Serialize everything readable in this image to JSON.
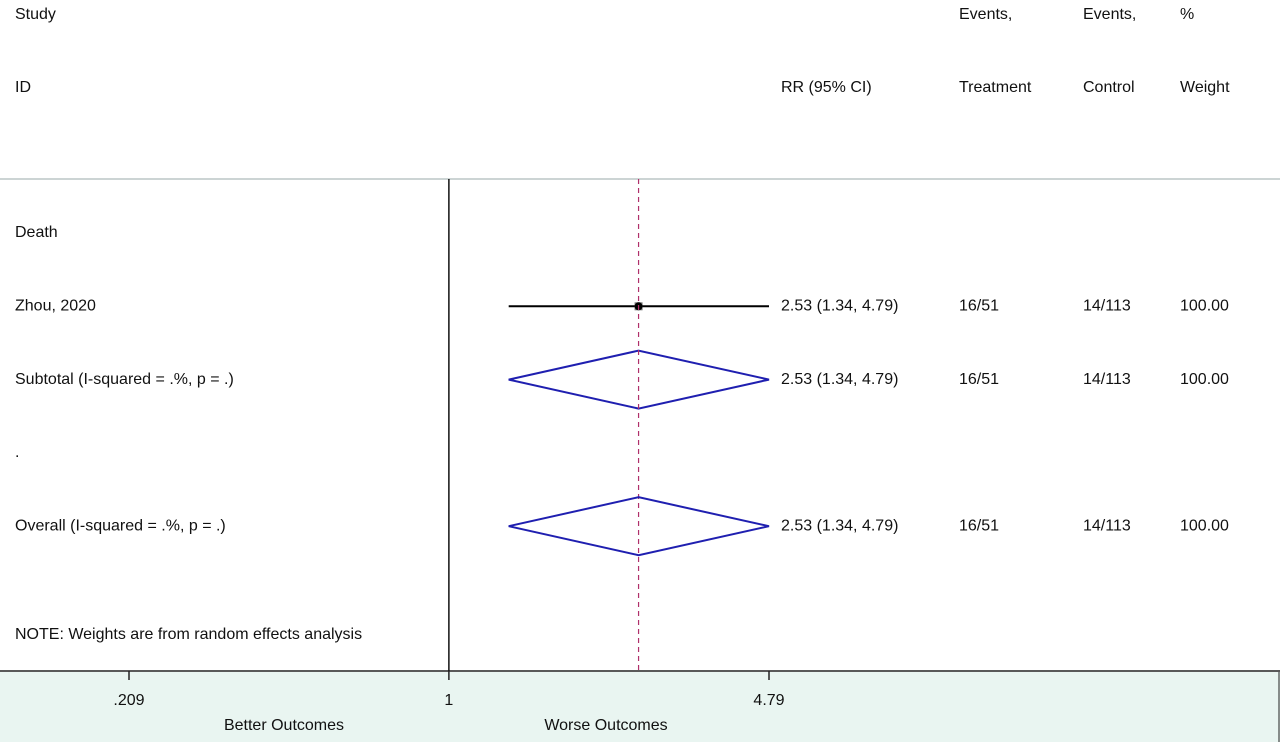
{
  "chart_data": {
    "type": "forest",
    "columns": {
      "study": [
        "Study",
        "ID"
      ],
      "rr": "RR (95% CI)",
      "treatment": [
        "Events,",
        "Treatment"
      ],
      "control": [
        "Events,",
        "Control"
      ],
      "weight": [
        "%",
        "Weight"
      ]
    },
    "rows": [
      {
        "label": "Death"
      },
      {
        "label": "Zhou, 2020",
        "shape": "point",
        "estimate": 2.53,
        "ci": [
          1.34,
          4.79
        ],
        "ci_label": "2.53 (1.34, 4.79)",
        "treatment": "16/51",
        "control": "14/113",
        "weight": "100.00"
      },
      {
        "label": "Subtotal  (I-squared = .%, p = .)",
        "shape": "diamond",
        "estimate": 2.53,
        "ci": [
          1.34,
          4.79
        ],
        "ci_label": "2.53 (1.34, 4.79)",
        "treatment": "16/51",
        "control": "14/113",
        "weight": "100.00"
      },
      {
        "label": "."
      },
      {
        "label": "Overall  (I-squared = .%, p = .)",
        "shape": "diamond",
        "overall": true,
        "estimate": 2.53,
        "ci": [
          1.34,
          4.79
        ],
        "ci_label": "2.53 (1.34, 4.79)",
        "treatment": "16/51",
        "control": "14/113",
        "weight": "100.00"
      }
    ],
    "note": "NOTE: Weights are from random effects analysis",
    "log_scale": true,
    "xlim": [
      0.209,
      4.79
    ],
    "xticks": [
      {
        "value": 0.209,
        "label": ".209"
      },
      1,
      {
        "value": 4.79,
        "label": "4.79"
      }
    ],
    "null_value": 1,
    "xlabels": [
      "Better Outcomes",
      "Worse Outcomes"
    ],
    "diamond_color": "#1f1fb0",
    "overall_line_color": "#b0306a",
    "point_color": "#000000"
  }
}
